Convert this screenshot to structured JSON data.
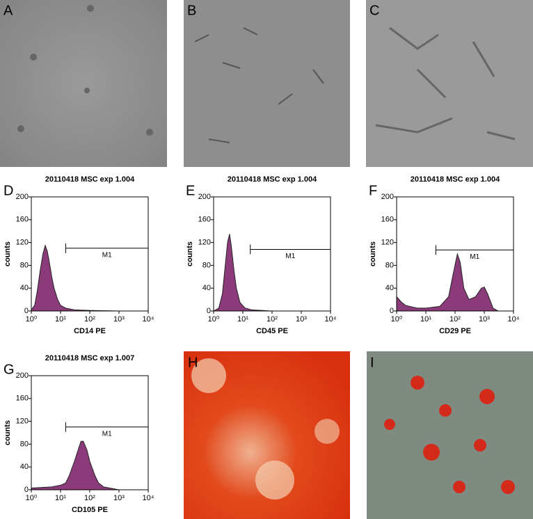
{
  "image_panels": [
    "A",
    "B",
    "C",
    "H",
    "I"
  ],
  "chart_data": [
    {
      "type": "area",
      "panel": "D",
      "title": "20110418 MSC exp 1.004",
      "xlabel": "CD14 PE",
      "ylabel": "counts",
      "color": "#8b3a7a",
      "log_x": true,
      "x": [
        1,
        1.3,
        1.6,
        2,
        2.5,
        3,
        3.5,
        4,
        5,
        6,
        8,
        10,
        15,
        30,
        100,
        1000,
        10000
      ],
      "values": [
        2,
        10,
        35,
        70,
        100,
        115,
        105,
        90,
        60,
        40,
        20,
        10,
        5,
        2,
        1,
        0,
        0
      ],
      "gate": {
        "label": "M1",
        "x": [
          15,
          10000
        ],
        "y": 110
      },
      "xlim": [
        1,
        10000
      ],
      "ylim": [
        0,
        200
      ],
      "xticks": [
        {
          "value": 1,
          "label": "10⁰"
        },
        {
          "value": 10,
          "label": "10¹"
        },
        {
          "value": 100,
          "label": "10²"
        },
        {
          "value": 1000,
          "label": "10³"
        },
        {
          "value": 10000,
          "label": "10⁴"
        }
      ],
      "yticks": [
        0,
        40,
        80,
        120,
        160,
        200
      ]
    },
    {
      "type": "area",
      "panel": "E",
      "title": "20110418 MSC exp 1.004",
      "xlabel": "CD45 PE",
      "ylabel": "counts",
      "color": "#8b3a7a",
      "log_x": true,
      "x": [
        1,
        1.5,
        2,
        2.5,
        3,
        3.5,
        4,
        5,
        6,
        8,
        12,
        20,
        100,
        10000
      ],
      "values": [
        0,
        5,
        30,
        80,
        120,
        135,
        115,
        70,
        40,
        15,
        5,
        2,
        0,
        0
      ],
      "gate": {
        "label": "M1",
        "x": [
          18,
          10000
        ],
        "y": 108
      },
      "xlim": [
        1,
        10000
      ],
      "ylim": [
        0,
        200
      ],
      "xticks": [
        {
          "value": 1,
          "label": "10⁰"
        },
        {
          "value": 10,
          "label": "10¹"
        },
        {
          "value": 100,
          "label": "10²"
        },
        {
          "value": 1000,
          "label": "10³"
        },
        {
          "value": 10000,
          "label": "10⁴"
        }
      ],
      "yticks": [
        0,
        40,
        80,
        120,
        160,
        200
      ]
    },
    {
      "type": "area",
      "panel": "F",
      "title": "20110418 MSC exp 1.004",
      "xlabel": "CD29 PE",
      "ylabel": "counts",
      "color": "#8b3a7a",
      "log_x": true,
      "x": [
        1,
        1.5,
        2,
        5,
        10,
        30,
        60,
        90,
        120,
        150,
        200,
        300,
        500,
        800,
        1000,
        1300,
        2000,
        3000,
        10000
      ],
      "values": [
        25,
        15,
        10,
        5,
        5,
        8,
        25,
        70,
        100,
        85,
        40,
        20,
        25,
        40,
        42,
        30,
        5,
        0,
        0
      ],
      "gate": {
        "label": "M1",
        "x": [
          22,
          10000
        ],
        "y": 107
      },
      "xlim": [
        1,
        10000
      ],
      "ylim": [
        0,
        200
      ],
      "xticks": [
        {
          "value": 1,
          "label": "10⁰"
        },
        {
          "value": 10,
          "label": "10¹"
        },
        {
          "value": 100,
          "label": "10²"
        },
        {
          "value": 1000,
          "label": "10³"
        },
        {
          "value": 10000,
          "label": "10⁴"
        }
      ],
      "yticks": [
        0,
        40,
        80,
        120,
        160,
        200
      ]
    },
    {
      "type": "area",
      "panel": "G",
      "title": "20110418 MSC exp 1.007",
      "xlabel": "CD105 PE",
      "ylabel": "counts",
      "color": "#8b3a7a",
      "log_x": true,
      "x": [
        1,
        5,
        10,
        15,
        20,
        30,
        40,
        50,
        60,
        80,
        100,
        150,
        200,
        300,
        1000,
        10000
      ],
      "values": [
        3,
        5,
        8,
        12,
        25,
        50,
        70,
        85,
        85,
        70,
        50,
        25,
        12,
        5,
        0,
        0
      ],
      "gate": {
        "label": "M1",
        "x": [
          15,
          10000
        ],
        "y": 110
      },
      "xlim": [
        1,
        10000
      ],
      "ylim": [
        0,
        200
      ],
      "xticks": [
        {
          "value": 1,
          "label": "10⁰"
        },
        {
          "value": 10,
          "label": "10¹"
        },
        {
          "value": 100,
          "label": "10²"
        },
        {
          "value": 1000,
          "label": "10³"
        },
        {
          "value": 10000,
          "label": "10⁴"
        }
      ],
      "yticks": [
        0,
        40,
        80,
        120,
        160,
        200
      ]
    }
  ]
}
